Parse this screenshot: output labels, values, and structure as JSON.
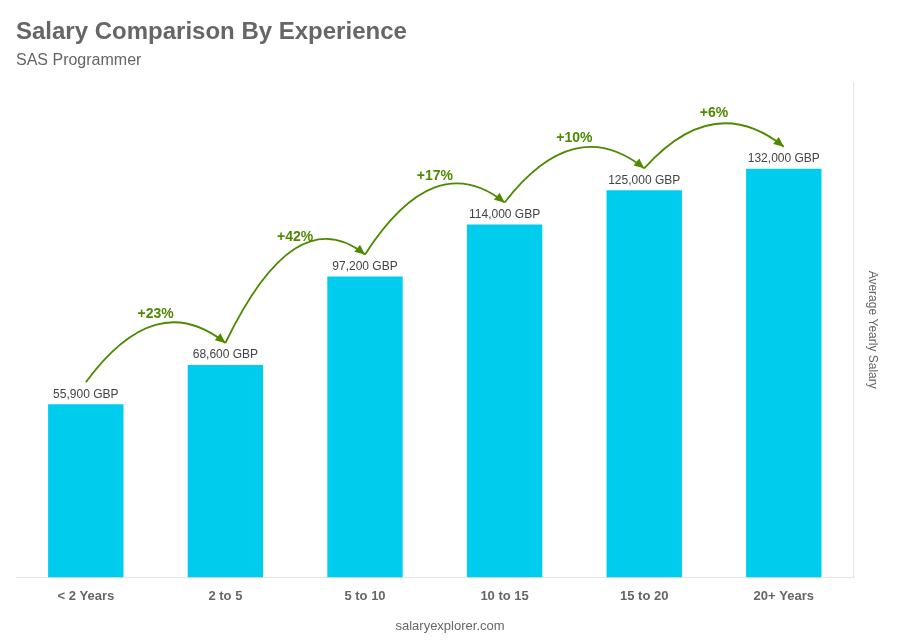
{
  "chart_data": {
    "type": "bar",
    "title": "Salary Comparison By Experience",
    "subtitle": "SAS Programmer",
    "categories": [
      "< 2 Years",
      "2 to 5",
      "5 to 10",
      "10 to 15",
      "15 to 20",
      "20+ Years"
    ],
    "values": [
      55900,
      68600,
      97200,
      114000,
      125000,
      132000
    ],
    "value_labels": [
      "55,900 GBP",
      "68,600 GBP",
      "97,200 GBP",
      "114,000 GBP",
      "125,000 GBP",
      "132,000 GBP"
    ],
    "data_labels": true,
    "annotations": [
      "+23%",
      "+42%",
      "+17%",
      "+10%",
      "+6%"
    ],
    "y_label": "Average Yearly Salary",
    "footer": "salaryexplorer.com",
    "color": "#00ccee",
    "ylim": [
      0,
      160000
    ],
    "tick_labels": "x",
    "grid": false
  }
}
